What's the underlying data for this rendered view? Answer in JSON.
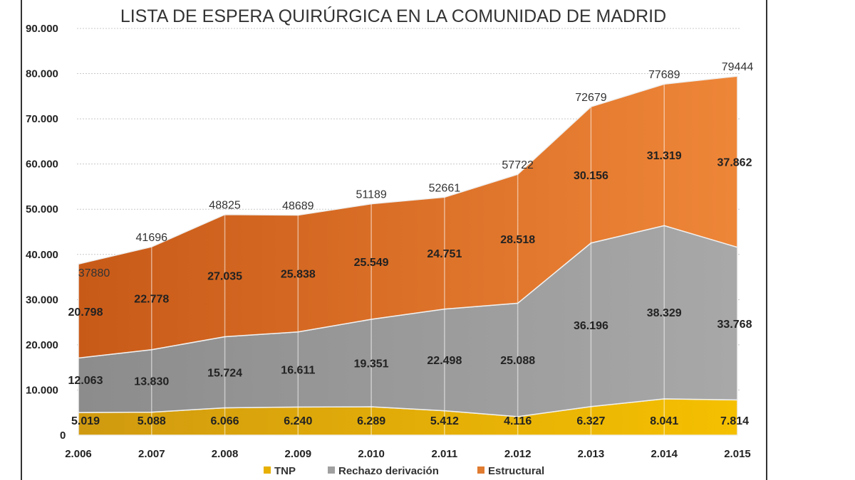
{
  "chart_data": {
    "type": "area",
    "stacked": true,
    "title": "LISTA DE ESPERA QUIRÚRGICA EN LA COMUNIDAD DE MADRID",
    "categories": [
      "2.006",
      "2.007",
      "2.008",
      "2.009",
      "2.010",
      "2.011",
      "2.012",
      "2.013",
      "2.014",
      "2.015"
    ],
    "ylim": [
      0,
      90000
    ],
    "yticks": [
      0,
      10000,
      20000,
      30000,
      40000,
      50000,
      60000,
      70000,
      80000,
      90000
    ],
    "ytick_labels": [
      "0",
      "10.000",
      "20.000",
      "30.000",
      "40.000",
      "50.000",
      "60.000",
      "70.000",
      "80.000",
      "90.000"
    ],
    "grid": true,
    "legend_position": "bottom",
    "series": [
      {
        "name": "TNP",
        "color": "#e8b000",
        "values": [
          5019,
          5088,
          6066,
          6240,
          6289,
          5412,
          4116,
          6327,
          8041,
          7814
        ],
        "labels": [
          "5.019",
          "5.088",
          "6.066",
          "6.240",
          "6.289",
          "5.412",
          "4.116",
          "6.327",
          "8.041",
          "7.814"
        ]
      },
      {
        "name": "Rechazo derivación",
        "color": "#a0a0a0",
        "values": [
          12063,
          13830,
          15724,
          16611,
          19351,
          22498,
          25088,
          36196,
          38329,
          33768
        ],
        "labels": [
          "12.063",
          "13.830",
          "15.724",
          "16.611",
          "19.351",
          "22.498",
          "25.088",
          "36.196",
          "38.329",
          "33.768"
        ]
      },
      {
        "name": "Estructural",
        "color": "#e07b30",
        "values": [
          20798,
          22778,
          27035,
          25838,
          25549,
          24751,
          28518,
          30156,
          31319,
          37862
        ],
        "labels": [
          "20.798",
          "22.778",
          "27.035",
          "25.838",
          "25.549",
          "24.751",
          "28.518",
          "30.156",
          "31.319",
          "37.862"
        ]
      }
    ],
    "totals": [
      37880,
      41696,
      48825,
      48689,
      51189,
      52661,
      57722,
      72679,
      77689,
      79444
    ],
    "total_labels": [
      "37880",
      "41696",
      "48825",
      "48689",
      "51189",
      "52661",
      "57722",
      "72679",
      "77689",
      "79444"
    ]
  }
}
